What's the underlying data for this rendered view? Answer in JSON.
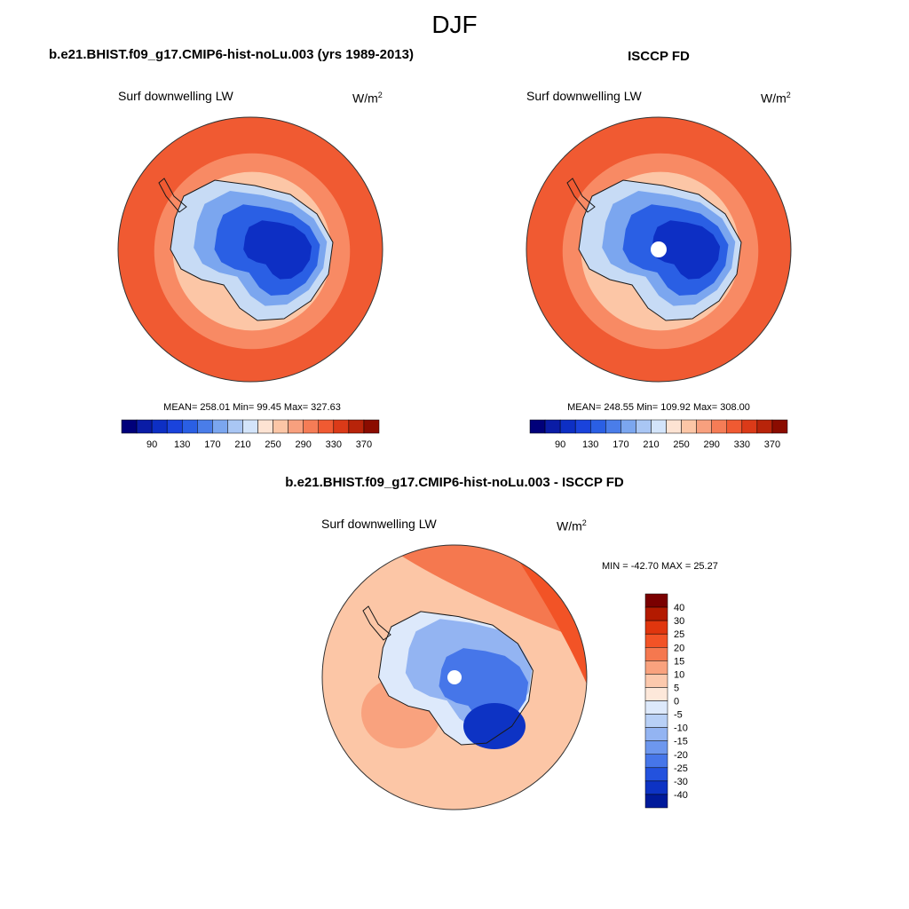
{
  "figure": {
    "season": "DJF",
    "panel_left_title": "b.e21.BHIST.f09_g17.CMIP6-hist-noLu.003 (yrs 1989-2013)",
    "panel_right_title": "ISCCP FD",
    "panel_diff_title": "b.e21.BHIST.f09_g17.CMIP6-hist-noLu.003 - ISCCP FD"
  },
  "panels": {
    "left": {
      "variable": "Surf downwelling LW",
      "units_base": "W/m",
      "units_exp": "2",
      "stats": "MEAN= 258.01  Min=  99.45  Max= 327.63"
    },
    "right": {
      "variable": "Surf downwelling LW",
      "units_base": "W/m",
      "units_exp": "2",
      "stats": "MEAN= 248.55  Min= 109.92  Max= 308.00"
    },
    "diff": {
      "variable": "Surf downwelling LW",
      "units_base": "W/m",
      "units_exp": "2",
      "stats": "MIN = -42.70 MAX =  25.27"
    }
  },
  "colors": {
    "coast": "#1a1a1a",
    "outline": "#333333",
    "ocean_outer": "#f05a32",
    "ocean_mid": "#f88a64",
    "ocean_inner": "#fcc6a6",
    "ice_light": "#c7dbf5",
    "ice_mid": "#7ba6ef",
    "ice_dark": "#2a5fe4",
    "ice_deep": "#0d2fc4",
    "pole_hole": "#ffffff"
  },
  "chart_data": [
    {
      "type": "heatmap",
      "projection": "south-polar-stereographic",
      "title": "b.e21.BHIST.f09_g17.CMIP6-hist-noLu.003 (yrs 1989-2013)",
      "variable": "Surf downwelling LW",
      "units": "W/m2",
      "mean": 258.01,
      "min": 99.45,
      "max": 327.63,
      "colorbar": {
        "tick_labels": [
          "90",
          "130",
          "170",
          "210",
          "250",
          "290",
          "330",
          "370"
        ],
        "levels": [
          80,
          90,
          110,
          130,
          150,
          170,
          190,
          210,
          230,
          250,
          270,
          290,
          310,
          330,
          350,
          370
        ],
        "colors": [
          "#00007a",
          "#0a1ca6",
          "#0d2fc4",
          "#1a43dc",
          "#2a5fe4",
          "#4a7de9",
          "#7ba6ef",
          "#a9c6f4",
          "#d3e4fa",
          "#fde3d3",
          "#fcc6a6",
          "#f8a07e",
          "#f57c56",
          "#f05a32",
          "#db3a18",
          "#b8240a",
          "#8b0c00"
        ]
      }
    },
    {
      "type": "heatmap",
      "projection": "south-polar-stereographic",
      "title": "ISCCP FD",
      "variable": "Surf downwelling LW",
      "units": "W/m2",
      "mean": 248.55,
      "min": 109.92,
      "max": 308.0,
      "colorbar": {
        "tick_labels": [
          "90",
          "130",
          "170",
          "210",
          "250",
          "290",
          "330",
          "370"
        ],
        "levels": [
          80,
          90,
          110,
          130,
          150,
          170,
          190,
          210,
          230,
          250,
          270,
          290,
          310,
          330,
          350,
          370
        ],
        "colors": [
          "#00007a",
          "#0a1ca6",
          "#0d2fc4",
          "#1a43dc",
          "#2a5fe4",
          "#4a7de9",
          "#7ba6ef",
          "#a9c6f4",
          "#d3e4fa",
          "#fde3d3",
          "#fcc6a6",
          "#f8a07e",
          "#f57c56",
          "#f05a32",
          "#db3a18",
          "#b8240a",
          "#8b0c00"
        ]
      }
    },
    {
      "type": "heatmap",
      "projection": "south-polar-stereographic",
      "title": "b.e21.BHIST.f09_g17.CMIP6-hist-noLu.003 - ISCCP FD",
      "variable": "Surf downwelling LW",
      "units": "W/m2",
      "min": -42.7,
      "max": 25.27,
      "colorbar": {
        "orientation": "vertical",
        "tick_labels": [
          "40",
          "30",
          "25",
          "20",
          "15",
          "10",
          "5",
          "0",
          "-5",
          "-10",
          "-15",
          "-20",
          "-25",
          "-30",
          "-40"
        ],
        "colors": [
          "#7a0000",
          "#b31a00",
          "#e0360e",
          "#f25326",
          "#f5784f",
          "#f9a27e",
          "#fcc9ad",
          "#fde8da",
          "#dde9fb",
          "#b8d0f6",
          "#93b4f2",
          "#6d97ee",
          "#4676e9",
          "#2352de",
          "#0d33c4",
          "#001a9a"
        ]
      }
    }
  ]
}
